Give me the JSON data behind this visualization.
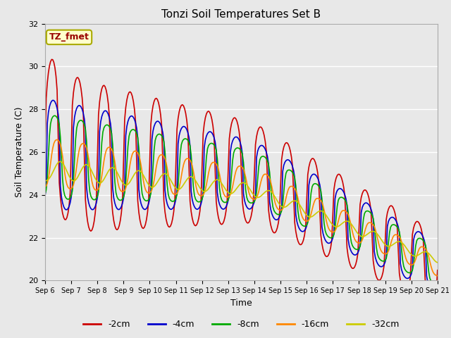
{
  "title": "Tonzi Soil Temperatures Set B",
  "xlabel": "Time",
  "ylabel": "Soil Temperature (C)",
  "ylim": [
    20,
    32
  ],
  "xlim": [
    0,
    360
  ],
  "fig_bg_color": "#e8e8e8",
  "plot_bg_color": "#e8e8e8",
  "grid_color": "#ffffff",
  "annotation_text": "TZ_fmet",
  "annotation_bg": "#ffffcc",
  "annotation_border": "#aaaa00",
  "annotation_fg": "#990000",
  "series": [
    {
      "label": "-2cm",
      "color": "#cc0000",
      "lw": 1.2
    },
    {
      "label": "-4cm",
      "color": "#0000cc",
      "lw": 1.2
    },
    {
      "label": "-8cm",
      "color": "#00aa00",
      "lw": 1.2
    },
    {
      "label": "-16cm",
      "color": "#ff8800",
      "lw": 1.2
    },
    {
      "label": "-32cm",
      "color": "#cccc00",
      "lw": 1.2
    }
  ],
  "xtick_labels": [
    "Sep 6",
    "Sep 7",
    "Sep 8",
    "Sep 9",
    "Sep 10",
    "Sep 11",
    "Sep 12",
    "Sep 13",
    "Sep 14",
    "Sep 15",
    "Sep 16",
    "Sep 17",
    "Sep 18",
    "Sep 19",
    "Sep 20",
    "Sep 21"
  ],
  "xtick_positions": [
    0,
    24,
    48,
    72,
    96,
    120,
    144,
    168,
    192,
    216,
    240,
    264,
    288,
    312,
    336,
    360
  ]
}
